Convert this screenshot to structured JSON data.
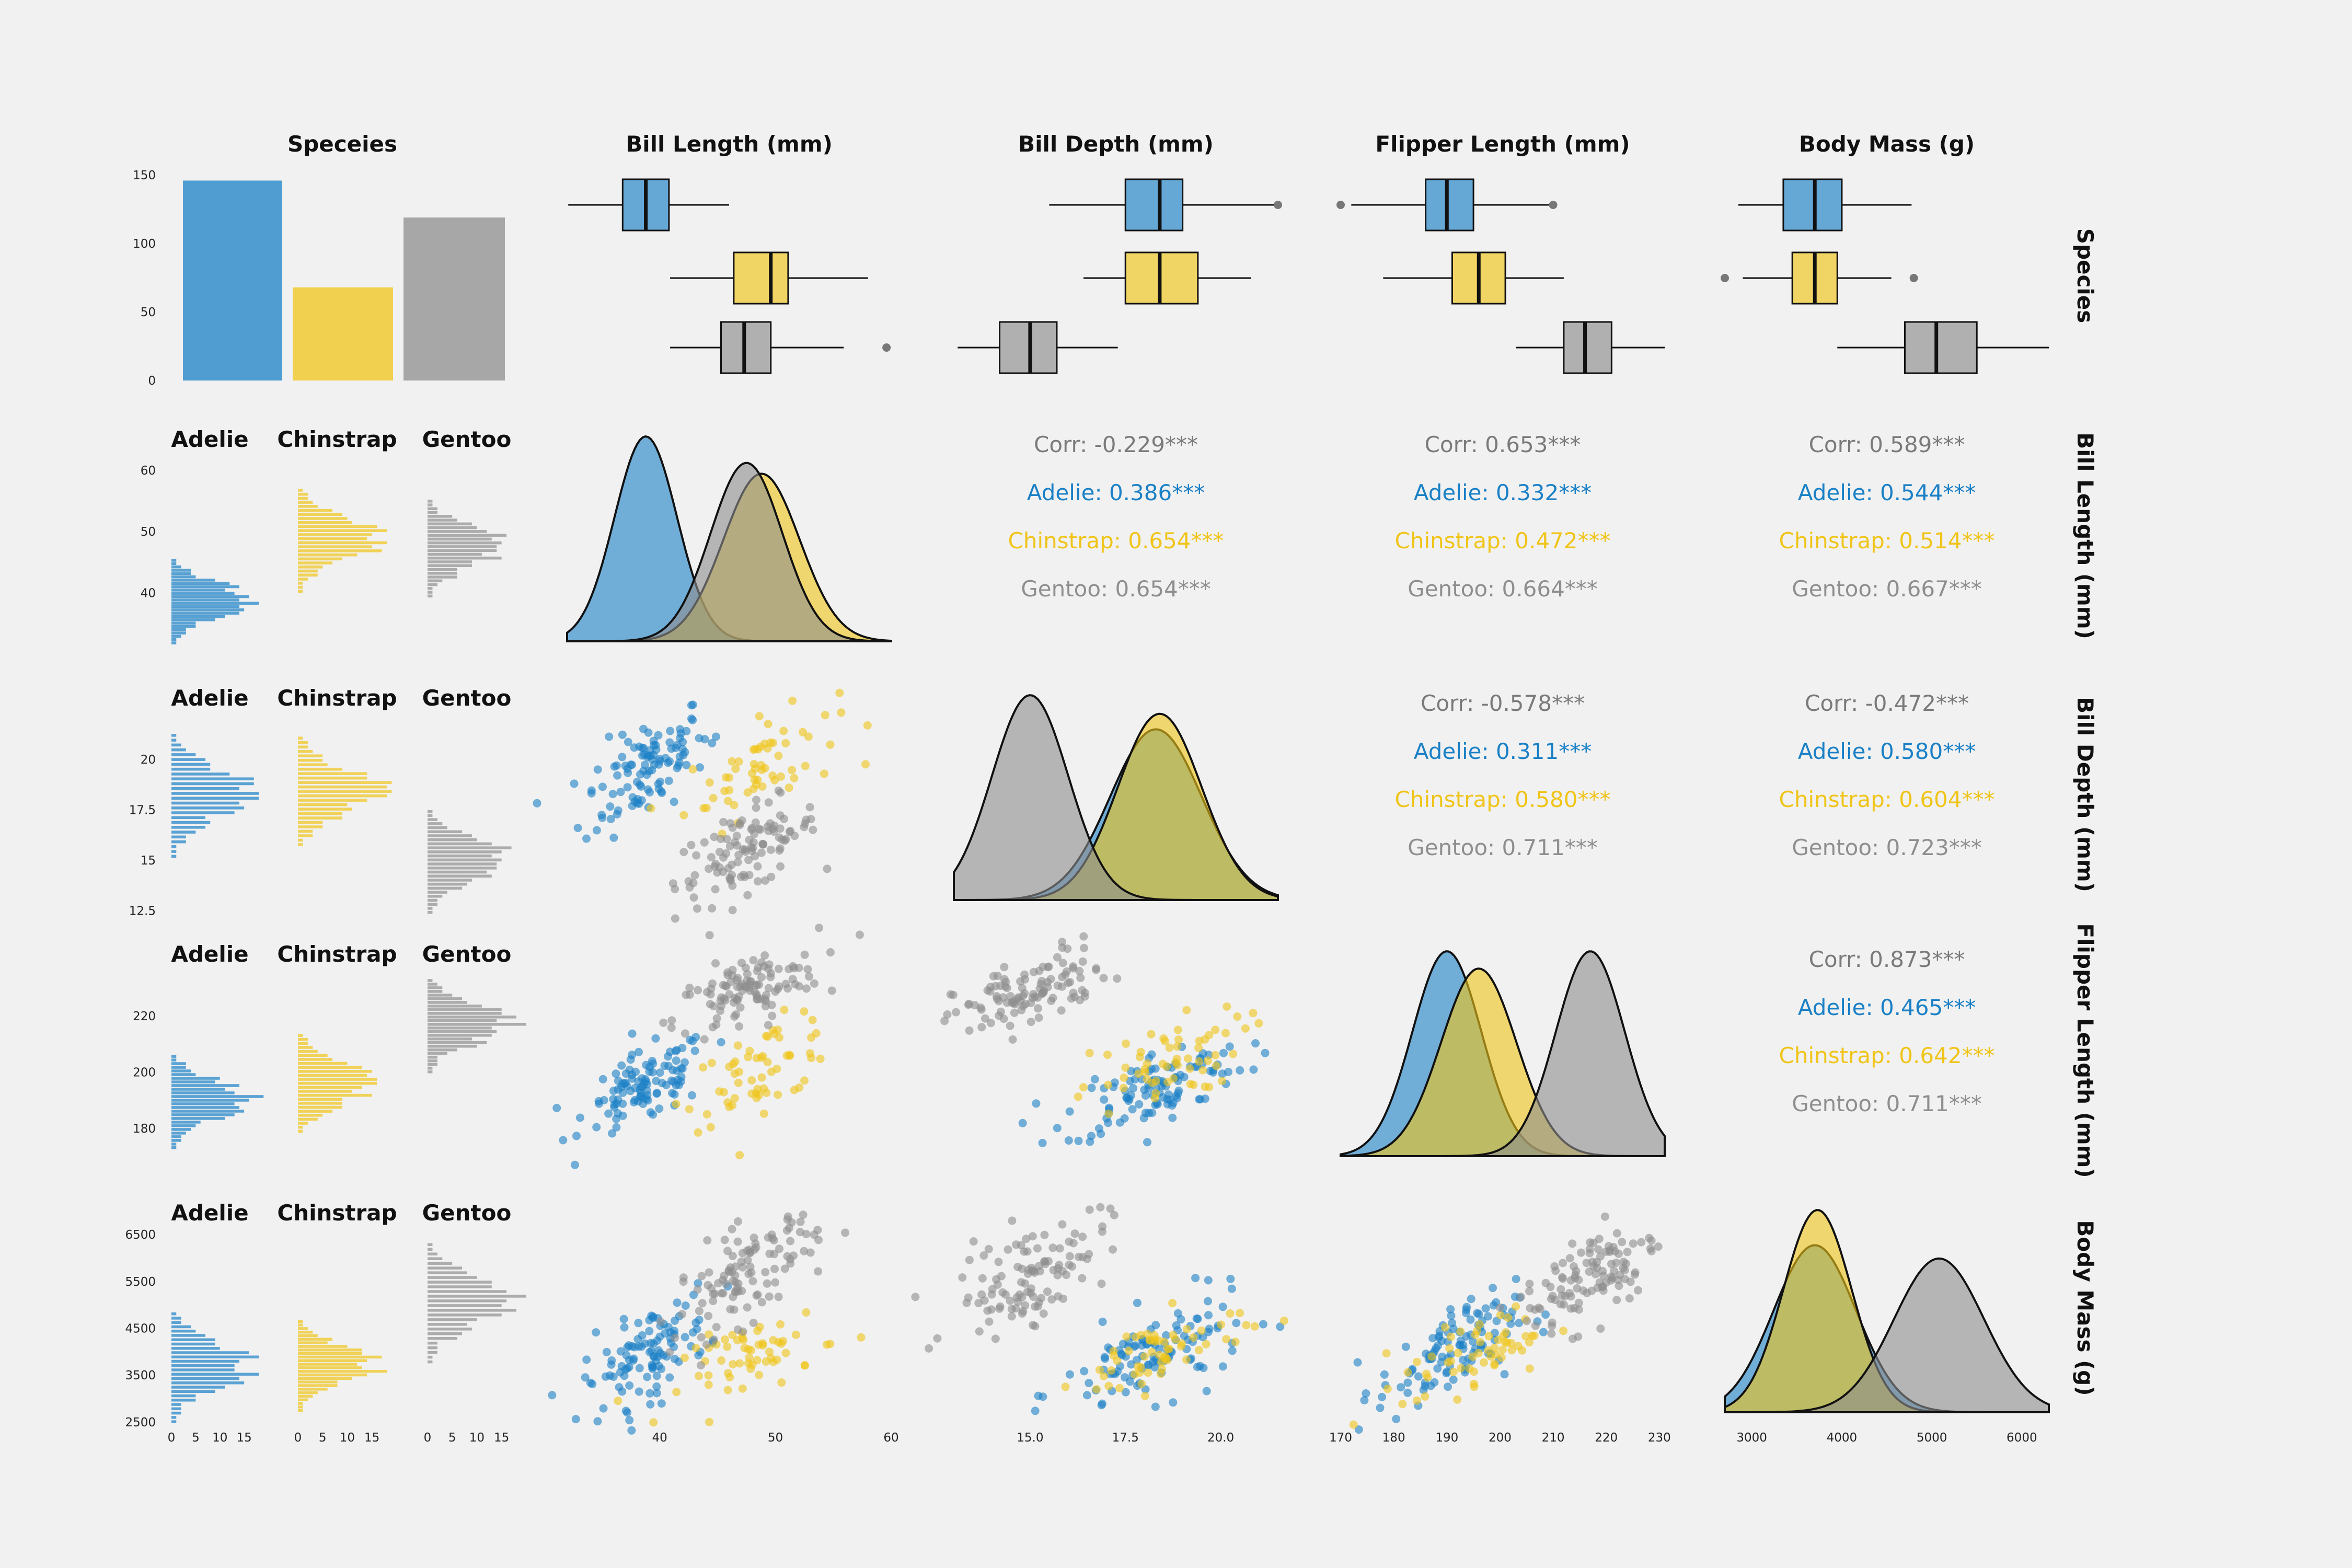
{
  "colors": {
    "Adelie": "#1a80c6",
    "Chinstrap": "#f0c418",
    "Gentoo": "#8e8e8e",
    "background": "#f1f1f1"
  },
  "variables": [
    "Speceies",
    "Bill Length (mm)",
    "Bill Depth (mm)",
    "Flipper Length (mm)",
    "Body Mass (g)"
  ],
  "row_labels": [
    "Species",
    "Bill Length (mm)",
    "Bill Depth (mm)",
    "Flipper Length (mm)",
    "Body Mass (g)"
  ],
  "species": [
    "Adelie",
    "Chinstrap",
    "Gentoo"
  ],
  "facet_labels": [
    "Adelie",
    "Chinstrap",
    "Gentoo"
  ],
  "chart_data": {
    "type": "scatter",
    "title": "",
    "grid": false,
    "species_counts": {
      "categories": [
        "Adelie",
        "Chinstrap",
        "Gentoo"
      ],
      "values": [
        146,
        68,
        119
      ],
      "ylim": [
        0,
        150
      ],
      "ticks": [
        0,
        50,
        100,
        150
      ]
    },
    "axis_ticks": {
      "bill_length": [
        40,
        50,
        60
      ],
      "bill_depth": [
        15.0,
        17.5,
        20.0
      ],
      "flipper_length": [
        170,
        180,
        190,
        200,
        210,
        220,
        230
      ],
      "body_mass": [
        3000,
        4000,
        5000,
        6000
      ],
      "hist_count": [
        0,
        5,
        10,
        15
      ],
      "row_bill_length": [
        40,
        50,
        60
      ],
      "row_bill_depth": [
        12.5,
        15.0,
        17.5,
        20.0
      ],
      "row_flipper_length": [
        180,
        200,
        220
      ],
      "row_body_mass": [
        2500,
        3500,
        4500,
        5500,
        6500
      ]
    },
    "ranges": {
      "bill_length": [
        32,
        60
      ],
      "bill_depth": [
        13,
        21.5
      ],
      "flipper_length": [
        170,
        231
      ],
      "body_mass": [
        2700,
        6300
      ]
    },
    "boxplots": {
      "bill_length": {
        "Adelie": {
          "min": 32.1,
          "q1": 36.8,
          "median": 38.8,
          "q3": 40.8,
          "max": 46.0,
          "outliers": []
        },
        "Chinstrap": {
          "min": 40.9,
          "q1": 46.4,
          "median": 49.6,
          "q3": 51.1,
          "max": 58.0,
          "outliers": []
        },
        "Gentoo": {
          "min": 40.9,
          "q1": 45.3,
          "median": 47.3,
          "q3": 49.6,
          "max": 55.9,
          "outliers": [
            59.6
          ]
        }
      },
      "bill_depth": {
        "Adelie": {
          "min": 15.5,
          "q1": 17.5,
          "median": 18.4,
          "q3": 19.0,
          "max": 21.5,
          "outliers": [
            21.5
          ]
        },
        "Chinstrap": {
          "min": 16.4,
          "q1": 17.5,
          "median": 18.4,
          "q3": 19.4,
          "max": 20.8,
          "outliers": []
        },
        "Gentoo": {
          "min": 13.1,
          "q1": 14.2,
          "median": 15.0,
          "q3": 15.7,
          "max": 17.3,
          "outliers": []
        }
      },
      "flipper_length": {
        "Adelie": {
          "min": 172,
          "q1": 186,
          "median": 190,
          "q3": 195,
          "max": 210,
          "outliers": [
            170,
            210
          ]
        },
        "Chinstrap": {
          "min": 178,
          "q1": 191,
          "median": 196,
          "q3": 201,
          "max": 212,
          "outliers": []
        },
        "Gentoo": {
          "min": 203,
          "q1": 212,
          "median": 216,
          "q3": 221,
          "max": 231,
          "outliers": []
        }
      },
      "body_mass": {
        "Adelie": {
          "min": 2850,
          "q1": 3350,
          "median": 3700,
          "q3": 4000,
          "max": 4775,
          "outliers": []
        },
        "Chinstrap": {
          "min": 2900,
          "q1": 3450,
          "median": 3700,
          "q3": 3950,
          "max": 4550,
          "outliers": [
            2700,
            4800
          ]
        },
        "Gentoo": {
          "min": 3950,
          "q1": 4700,
          "median": 5050,
          "q3": 5500,
          "max": 6300,
          "outliers": []
        }
      }
    },
    "stats": {
      "Adelie": {
        "bill_length": [
          38.8,
          2.7
        ],
        "bill_depth": [
          18.3,
          1.2
        ],
        "flipper_length": [
          190,
          6.5
        ],
        "body_mass": [
          3700,
          460
        ]
      },
      "Chinstrap": {
        "bill_length": [
          48.8,
          3.3
        ],
        "bill_depth": [
          18.4,
          1.1
        ],
        "flipper_length": [
          196,
          7.1
        ],
        "body_mass": [
          3730,
          380
        ]
      },
      "Gentoo": {
        "bill_length": [
          47.5,
          3.1
        ],
        "bill_depth": [
          15.0,
          1.0
        ],
        "flipper_length": [
          217,
          6.5
        ],
        "body_mass": [
          5080,
          500
        ]
      }
    },
    "correlations": [
      {
        "pair": [
          "Bill Length (mm)",
          "Bill Depth (mm)"
        ],
        "lines": [
          "Corr: -0.229***",
          "Adelie: 0.386***",
          "Chinstrap: 0.654***",
          "Gentoo: 0.654***"
        ]
      },
      {
        "pair": [
          "Bill Length (mm)",
          "Flipper Length (mm)"
        ],
        "lines": [
          "Corr: 0.653***",
          "Adelie: 0.332***",
          "Chinstrap: 0.472***",
          "Gentoo: 0.664***"
        ]
      },
      {
        "pair": [
          "Bill Length (mm)",
          "Body Mass (g)"
        ],
        "lines": [
          "Corr: 0.589***",
          "Adelie: 0.544***",
          "Chinstrap: 0.514***",
          "Gentoo: 0.667***"
        ]
      },
      {
        "pair": [
          "Bill Depth (mm)",
          "Flipper Length (mm)"
        ],
        "lines": [
          "Corr: -0.578***",
          "Adelie: 0.311***",
          "Chinstrap: 0.580***",
          "Gentoo: 0.711***"
        ]
      },
      {
        "pair": [
          "Bill Depth (mm)",
          "Body Mass (g)"
        ],
        "lines": [
          "Corr: -0.472***",
          "Adelie: 0.580***",
          "Chinstrap: 0.604***",
          "Gentoo: 0.723***"
        ]
      },
      {
        "pair": [
          "Flipper Length (mm)",
          "Body Mass (g)"
        ],
        "lines": [
          "Corr: 0.873***",
          "Adelie: 0.465***",
          "Chinstrap: 0.642***",
          "Gentoo: 0.711***"
        ]
      }
    ]
  }
}
